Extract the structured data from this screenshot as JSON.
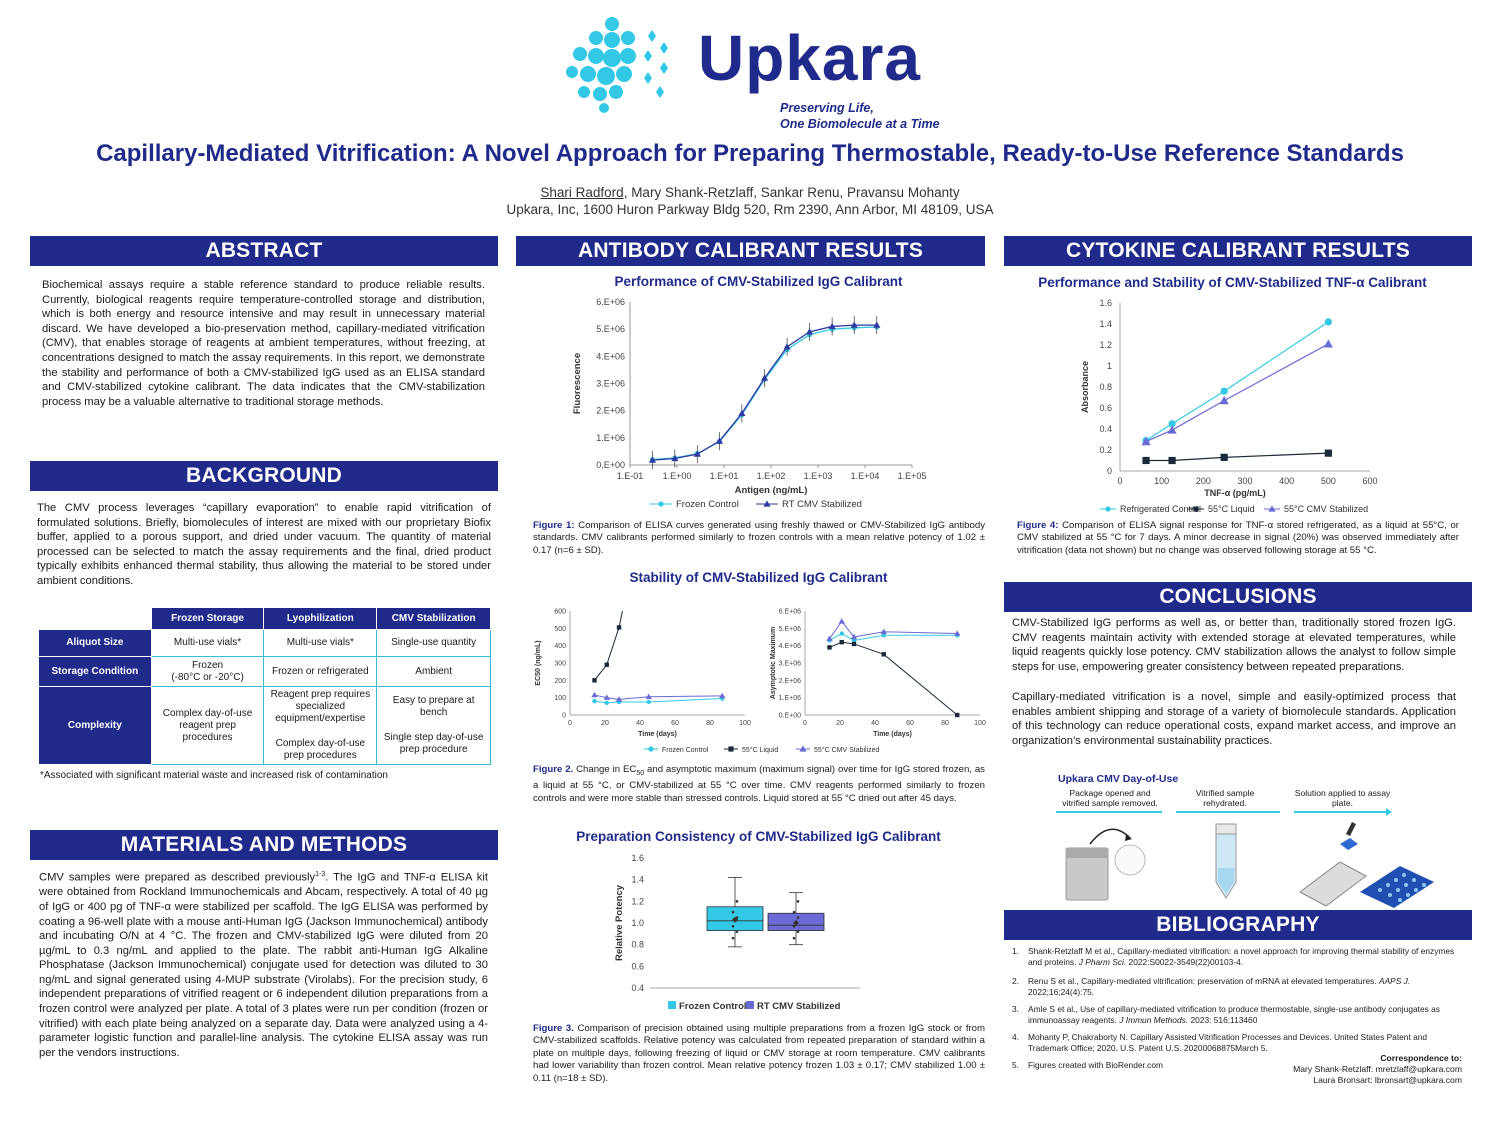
{
  "header": {
    "brand": "Upkara",
    "tagline_1": "Preserving Life,",
    "tagline_2": "One Biomolecule at a Time",
    "title": "Capillary-Mediated Vitrification: A Novel Approach for Preparing Thermostable, Ready-to-Use Reference Standards",
    "presenting_author": "Shari Radford",
    "other_authors": ", Mary Shank-Retzlaff, Sankar Renu, Pravansu Mohanty",
    "affiliation": "Upkara, Inc, 1600 Huron Parkway Bldg 520, Rm 2390, Ann Arbor, MI 48109, USA"
  },
  "colors": {
    "navy": "#1f2a8a",
    "cyan": "#33c9e6",
    "purple": "#6b6bd6",
    "dark": "#1b2a3a"
  },
  "abstract": {
    "heading": "ABSTRACT",
    "text": "Biochemical assays require a stable reference standard to produce reliable results. Currently, biological reagents require temperature-controlled storage and distribution, which is both energy and resource intensive and may result in unnecessary material discard. We have developed a bio-preservation method, capillary-mediated vitrification (CMV), that enables storage of reagents at ambient temperatures, without freezing, at concentrations designed to match the assay requirements. In this report, we demonstrate the stability and performance of both a CMV-stabilized IgG used as an ELISA standard and CMV-stabilized cytokine calibrant. The data indicates that the CMV-stabilization process may be a valuable alternative to traditional storage methods."
  },
  "background": {
    "heading": "BACKGROUND",
    "text": "The CMV process leverages “capillary evaporation” to enable rapid vitrification of formulated solutions. Briefly, biomolecules of interest are mixed with our proprietary Biofix buffer, applied to a porous support, and dried under vacuum. The quantity of material processed can be selected to match the assay requirements and the final, dried product typically exhibits enhanced thermal stability, thus allowing the material to be stored under ambient conditions.",
    "table": {
      "columns": [
        "Frozen Storage",
        "Lyophilization",
        "CMV Stabilization"
      ],
      "rows": [
        {
          "label": "Aliquot Size",
          "cells": [
            "Multi-use vials*",
            "Multi-use vials*",
            "Single-use quantity"
          ]
        },
        {
          "label": "Storage Condition",
          "cells": [
            "Frozen\n(-80°C or -20°C)",
            "Frozen or refrigerated",
            "Ambient"
          ]
        },
        {
          "label": "Complexity",
          "cells": [
            "Complex day-of-use reagent prep procedures",
            "Reagent prep requires specialized equipment/expertise",
            "Easy to prepare at bench"
          ],
          "cells_b": [
            "",
            "Complex day-of-use prep procedures",
            "Single step day-of-use prep procedure"
          ]
        }
      ],
      "footnote": "*Associated with significant material waste and increased risk of contamination"
    }
  },
  "methods": {
    "heading": "MATERIALS AND METHODS",
    "text_1": "CMV samples were prepared as described previously",
    "text_sup": "1-3",
    "text_2": ". The IgG and TNF-α ELISA kit were obtained from Rockland Immunochemicals and Abcam, respectively. A total of 40 µg of IgG or 400 pg of TNF-α were stabilized per scaffold. The IgG ELISA was performed by coating a 96-well plate with a mouse anti-Human IgG (Jackson Immunochemical) antibody and incubating O/N at 4 °C. The frozen and CMV-stabilized IgG were diluted from 20 µg/mL to 0.3 ng/mL and applied to the plate. The rabbit anti-Human IgG Alkaline Phosphatase (Jackson Immunochemical) conjugate used for detection was diluted to 30 ng/mL and signal generated using 4-MUP substrate (Virolabs). For the precision study, 6 independent preparations of vitrified reagent or 6 independent dilution preparations from a frozen control were analyzed per plate. A total of 3 plates were run per condition (frozen or vitrified) with each plate being analyzed on a separate day. Data were analyzed using a 4-parameter logistic function and parallel-line analysis. The cytokine ELISA assay was run per the vendors instructions."
  },
  "antibody": {
    "heading": "ANTIBODY CALIBRANT RESULTS",
    "fig1_title": "Performance of CMV-Stabilized IgG Calibrant",
    "fig1_caption_label": "Figure 1:",
    "fig1_caption": " Comparison of ELISA curves generated using freshly thawed or CMV-Stabilized IgG antibody standards. CMV calibrants performed similarly to frozen controls with a mean relative potency of 1.02 ± 0.17 (n=6 ± SD).",
    "stability_title": "Stability of CMV-Stabilized IgG Calibrant",
    "fig2_caption_label": "Figure 2.",
    "fig2_caption_a": " Change in EC",
    "fig2_caption_sub": "50",
    "fig2_caption_b": " and asymptotic maximum (maximum signal) over time for IgG stored frozen, as a liquid at 55 °C, or CMV-stabilized at 55 °C over time. CMV reagents performed similarly to frozen controls and were more stable than stressed controls. Liquid stored at 55 °C dried out after 45 days.",
    "fig3_title": "Preparation Consistency of CMV-Stabilized IgG Calibrant",
    "fig3_caption_label": "Figure 3.",
    "fig3_caption": " Comparison of precision obtained using multiple preparations from a frozen IgG stock or from CMV-stabilized scaffolds. Relative potency was calculated from repeated preparation of standard within a plate on multiple days, following freezing of liquid or CMV storage at room temperature. CMV calibrants had lower variability than frozen control. Mean relative potency frozen 1.03 ± 0.17; CMV stabilized 1.00 ± 0.11 (n=18 ± SD)."
  },
  "cytokine": {
    "heading": "CYTOKINE CALIBRANT RESULTS",
    "fig4_title": "Performance and Stability of CMV-Stabilized TNF-α Calibrant",
    "fig4_caption_label": "Figure 4:",
    "fig4_caption": " Comparison of ELISA signal response for TNF-α stored refrigerated, as a liquid at 55°C, or CMV stabilized at 55 °C for 7 days. A minor decrease in signal (20%) was observed immediately after vitrification (data not shown) but no change was observed following storage at 55 °C."
  },
  "conclusions": {
    "heading": "CONCLUSIONS",
    "p1": "CMV-Stabilized IgG performs as well as, or better than, traditionally stored frozen IgG. CMV reagents maintain activity with extended storage at elevated temperatures, while liquid reagents quickly lose potency. CMV stabilization allows the analyst to follow simple steps for use, empowering greater consistency between repeated preparations.",
    "p2": "Capillary-mediated vitrification is a novel, simple and easily-optimized process that enables ambient shipping and storage of a variety of biomolecule standards. Application of this technology can reduce operational costs, expand market access, and improve an organization’s environmental sustainability practices.",
    "workflow_title": "Upkara CMV Day-of-Use",
    "steps": [
      "Package opened and vitrified sample removed.",
      "Vitrified sample rehydrated.",
      "Solution applied to assay plate."
    ]
  },
  "bibliography": {
    "heading": "BIBLIOGRAPHY",
    "refs": [
      {
        "n": "1.",
        "a": "Shank-Retzlaff M et al., Capillary-mediated vitrification: a novel approach for improving thermal stability of enzymes and proteins. ",
        "j": "J Pharm Sci.",
        "b": " 2022:S0022-3549(22)00103-4."
      },
      {
        "n": "2.",
        "a": "Renu S et al., Capillary-mediated vitrification: preservation of mRNA at elevated temperatures. ",
        "j": "AAPS J.",
        "b": " 2022;16;24(4):75."
      },
      {
        "n": "3.",
        "a": "Amle S et al., Use of capillary-mediated vitrification to produce thermostable, single-use antibody conjugates as immunoassay reagents. ",
        "j": "J Immun Methods.",
        "b": " 2023: 516:113460"
      },
      {
        "n": "4.",
        "a": "Mohanty P, Chakraborty N. Capillary Assisted Vitrification Processes and Devices. United States Patent and Trademark Office; 2020. U.S. Patent U.S. 20200068875March 5.",
        "j": "",
        "b": ""
      },
      {
        "n": "5.",
        "a": "Figures created with BioRender.com",
        "j": "",
        "b": ""
      }
    ],
    "correspondence_label": "Correspondence to:",
    "contact_1": "Mary Shank-Retzlaff: mretzlaff@upkara.com",
    "contact_2": "Laura Bronsart: lbronsart@upkara.com"
  },
  "chart_data": [
    {
      "id": "fig1",
      "type": "line",
      "xlabel": "Antigen (ng/mL)",
      "ylabel": "Fluorescence",
      "x_scale": "log",
      "xticks": [
        "1.E-01",
        "1.E+00",
        "1.E+01",
        "1.E+02",
        "1.E+03",
        "1.E+04",
        "1.E+05"
      ],
      "yticks": [
        "0.E+00",
        "1.E+06",
        "2.E+06",
        "3.E+06",
        "4.E+06",
        "5.E+06",
        "6.E+06"
      ],
      "ylim": [
        0,
        6000000
      ],
      "x": [
        0.3,
        0.9,
        2.7,
        8,
        24,
        73,
        220,
        660,
        2000,
        5900,
        17800
      ],
      "series": [
        {
          "name": "Frozen Control",
          "color": "#33c9e6",
          "values": [
            200000,
            260000,
            420000,
            860000,
            1850000,
            3150000,
            4250000,
            4800000,
            5000000,
            5050000,
            5080000
          ]
        },
        {
          "name": "RT CMV Stabilized",
          "color": "#2f3aa0",
          "values": [
            180000,
            240000,
            400000,
            880000,
            1900000,
            3200000,
            4350000,
            4900000,
            5100000,
            5150000,
            5150000
          ]
        }
      ]
    },
    {
      "id": "fig2a",
      "type": "line",
      "xlabel": "Time (days)",
      "ylabel": "EC50 (ng/mL)",
      "xticks": [
        "0",
        "20",
        "40",
        "60",
        "80",
        "100"
      ],
      "yticks": [
        "0",
        "100",
        "200",
        "300",
        "400",
        "500",
        "600"
      ],
      "xlim": [
        0,
        100
      ],
      "ylim": [
        0,
        600
      ],
      "series": [
        {
          "name": "Frozen Control",
          "color": "#33c9e6",
          "x": [
            14,
            21,
            28,
            45,
            87
          ],
          "values": [
            80,
            70,
            75,
            75,
            95
          ]
        },
        {
          "name": "55°C Liquid",
          "color": "#1b2a3a",
          "x": [
            14,
            21,
            28
          ],
          "values": [
            200,
            290,
            505
          ]
        },
        {
          "name": "55°C CMV Stabilized",
          "color": "#6b6bd6",
          "x": [
            14,
            21,
            28,
            45,
            87
          ],
          "values": [
            115,
            100,
            90,
            105,
            110
          ]
        }
      ]
    },
    {
      "id": "fig2b",
      "type": "line",
      "xlabel": "Time (days)",
      "ylabel": "Asymptotic Maximum",
      "xticks": [
        "0",
        "20",
        "40",
        "60",
        "80",
        "100"
      ],
      "yticks": [
        "0.E+00",
        "1.E+06",
        "2.E+06",
        "3.E+06",
        "4.E+06",
        "5.E+06",
        "6.E+06"
      ],
      "xlim": [
        0,
        100
      ],
      "ylim": [
        0,
        6000000
      ],
      "series": [
        {
          "name": "Frozen Control",
          "color": "#33c9e6",
          "x": [
            14,
            21,
            28,
            45,
            87
          ],
          "values": [
            4300000,
            4700000,
            4300000,
            4600000,
            4600000
          ]
        },
        {
          "name": "55°C Liquid",
          "color": "#1b2a3a",
          "x": [
            14,
            21,
            28,
            45,
            87
          ],
          "values": [
            3900000,
            4200000,
            4100000,
            3500000,
            0
          ]
        },
        {
          "name": "55°C CMV Stabilized",
          "color": "#6b6bd6",
          "x": [
            14,
            21,
            28,
            45,
            87
          ],
          "values": [
            4400000,
            5400000,
            4500000,
            4800000,
            4700000
          ]
        }
      ]
    },
    {
      "id": "fig3",
      "type": "box",
      "ylabel": "Relative Potency",
      "yticks": [
        "0.4",
        "0.6",
        "0.8",
        "1.0",
        "1.2",
        "1.4",
        "1.6"
      ],
      "ylim": [
        0.4,
        1.6
      ],
      "series": [
        {
          "name": "Frozen Control",
          "color": "#33c9e6",
          "min": 0.78,
          "q1": 0.93,
          "median": 1.02,
          "q3": 1.15,
          "max": 1.42,
          "mean": 1.03
        },
        {
          "name": "RT CMV Stabilized",
          "color": "#6b6bd6",
          "min": 0.8,
          "q1": 0.93,
          "median": 0.98,
          "q3": 1.09,
          "max": 1.28,
          "mean": 1.0
        }
      ]
    },
    {
      "id": "fig4",
      "type": "line",
      "xlabel": "TNF-α (pg/mL)",
      "ylabel": "Absorbance",
      "xticks": [
        "0",
        "100",
        "200",
        "300",
        "400",
        "500",
        "600"
      ],
      "yticks": [
        "0",
        "0.2",
        "0.4",
        "0.6",
        "0.8",
        "1",
        "1.2",
        "1.4",
        "1.6"
      ],
      "xlim": [
        0,
        600
      ],
      "ylim": [
        0,
        1.6
      ],
      "x": [
        62.5,
        125,
        250,
        500
      ],
      "series": [
        {
          "name": "Refrigerated Control",
          "color": "#33c9e6",
          "values": [
            0.29,
            0.45,
            0.76,
            1.42
          ]
        },
        {
          "name": "55°C Liquid",
          "color": "#1b2a3a",
          "values": [
            0.1,
            0.1,
            0.13,
            0.17
          ]
        },
        {
          "name": "55°C CMV Stabilized",
          "color": "#6b6bd6",
          "values": [
            0.28,
            0.39,
            0.67,
            1.21
          ]
        }
      ]
    }
  ]
}
